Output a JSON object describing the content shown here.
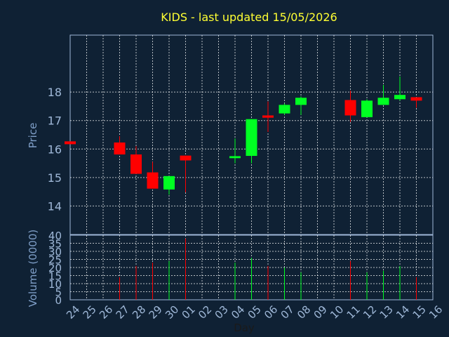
{
  "chart_data": {
    "type": "candlestick",
    "title": "KIDS - last updated 15/05/2026",
    "ylabel": "Price",
    "volume_label": "Volume (0000)",
    "xlabel": "Day",
    "ylim": [
      13.0,
      20.0
    ],
    "yticks": [
      "14",
      "15",
      "16",
      "17",
      "18"
    ],
    "volume_ylim": [
      0,
      40
    ],
    "volume_ticks": [
      "0",
      "5",
      "10",
      "15",
      "20",
      "25",
      "30",
      "35",
      "40"
    ],
    "grid": true,
    "x": [
      "24",
      "25",
      "26",
      "27",
      "28",
      "29",
      "30",
      "01",
      "02",
      "03",
      "04",
      "05",
      "06",
      "07",
      "08",
      "09",
      "10",
      "11",
      "12",
      "13",
      "14",
      "15",
      "16"
    ],
    "candles": [
      {
        "x": "24",
        "open": 16.27,
        "high": 16.27,
        "low": 16.17,
        "close": 16.17,
        "volume": 0
      },
      {
        "x": "27",
        "open": 16.23,
        "high": 16.45,
        "low": 15.81,
        "close": 15.81,
        "volume": 14
      },
      {
        "x": "28",
        "open": 15.81,
        "high": 16.1,
        "low": 15.13,
        "close": 15.13,
        "volume": 21
      },
      {
        "x": "29",
        "open": 15.18,
        "high": 15.55,
        "low": 14.61,
        "close": 14.61,
        "volume": 23
      },
      {
        "x": "30",
        "open": 14.58,
        "high": 15.05,
        "low": 14.4,
        "close": 15.05,
        "volume": 24
      },
      {
        "x": "01",
        "open": 15.77,
        "high": 15.77,
        "low": 14.48,
        "close": 15.6,
        "volume": 38
      },
      {
        "x": "04",
        "open": 15.68,
        "high": 16.37,
        "low": 15.5,
        "close": 15.75,
        "volume": 23
      },
      {
        "x": "05",
        "open": 15.76,
        "high": 17.05,
        "low": 15.5,
        "close": 17.05,
        "volume": 26
      },
      {
        "x": "06",
        "open": 17.18,
        "high": 17.67,
        "low": 16.6,
        "close": 17.1,
        "volume": 21
      },
      {
        "x": "07",
        "open": 17.25,
        "high": 17.6,
        "low": 17.2,
        "close": 17.55,
        "volume": 20
      },
      {
        "x": "08",
        "open": 17.55,
        "high": 17.85,
        "low": 17.2,
        "close": 17.8,
        "volume": 17
      },
      {
        "x": "11",
        "open": 17.72,
        "high": 18.05,
        "low": 16.95,
        "close": 17.18,
        "volume": 24
      },
      {
        "x": "12",
        "open": 17.12,
        "high": 17.75,
        "low": 17.12,
        "close": 17.7,
        "volume": 17
      },
      {
        "x": "13",
        "open": 17.55,
        "high": 18.25,
        "low": 17.55,
        "close": 17.8,
        "volume": 18
      },
      {
        "x": "14",
        "open": 17.75,
        "high": 18.55,
        "low": 17.7,
        "close": 17.9,
        "volume": 21
      },
      {
        "x": "15",
        "open": 17.82,
        "high": 17.82,
        "low": 17.45,
        "close": 17.7,
        "volume": 14
      }
    ],
    "colors": {
      "background": "#0f2134",
      "grid": "#ffffff",
      "up": "#00ff22",
      "down": "#ff0000",
      "title": "#ffff33",
      "tick_text": "#9fb8d8"
    }
  }
}
